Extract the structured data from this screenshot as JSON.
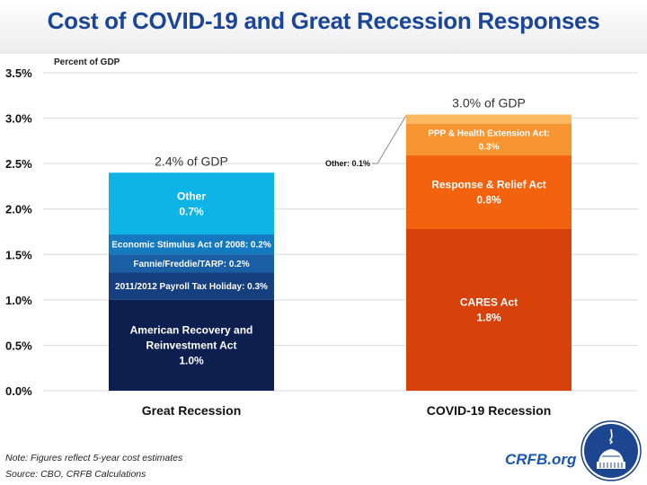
{
  "header": {
    "title": "Cost of COVID-19 and Great Recession Responses"
  },
  "colors": {
    "title": "#1a4599",
    "grid": "#d9d9d9",
    "leader_line": "#8c8c8c"
  },
  "chart_data": {
    "type": "bar",
    "stacked": true,
    "title": "Cost of COVID-19 and Great Recession Responses",
    "ylabel": "Percent of GDP",
    "xlabel": "",
    "ylim": [
      0,
      3.5
    ],
    "yticks": [
      0.0,
      0.5,
      1.0,
      1.5,
      2.0,
      2.5,
      3.0,
      3.5
    ],
    "ytick_labels": [
      "0.0%",
      "0.5%",
      "1.0%",
      "1.5%",
      "2.0%",
      "2.5%",
      "3.0%",
      "3.5%"
    ],
    "grid": true,
    "legend": "none",
    "categories": [
      "Great Recession",
      "COVID-19 Recession"
    ],
    "totals": [
      {
        "category": "Great Recession",
        "value": 2.4,
        "label": "2.4% of GDP"
      },
      {
        "category": "COVID-19 Recession",
        "value": 3.0,
        "label": "3.0% of GDP"
      }
    ],
    "stacks": [
      {
        "category": "Great Recession",
        "segments": [
          {
            "name": "American Recovery and Reinvestment Act",
            "value": 1.0,
            "label_lines": [
              "American Recovery and",
              "Reinvestment Act",
              "1.0%"
            ],
            "color": "#0d1f4e"
          },
          {
            "name": "2011/2012 Payroll Tax Holiday",
            "value": 0.3,
            "label_lines": [
              "2011/2012 Payroll Tax Holiday: 0.3%"
            ],
            "color": "#163f7f"
          },
          {
            "name": "Fannie/Freddie/TARP",
            "value": 0.2,
            "label_lines": [
              "Fannie/Freddie/TARP: 0.2%"
            ],
            "color": "#1a5ea3"
          },
          {
            "name": "Economic Stimulus Act of 2008",
            "value": 0.22,
            "label_lines": [
              "Economic Stimulus Act of 2008: 0.2%"
            ],
            "color": "#1479be"
          },
          {
            "name": "Other",
            "value": 0.68,
            "label_lines": [
              "Other",
              "0.7%"
            ],
            "color": "#0fb4e6"
          }
        ]
      },
      {
        "category": "COVID-19 Recession",
        "segments": [
          {
            "name": "CARES Act",
            "value": 1.78,
            "label_lines": [
              "CARES Act",
              "1.8%"
            ],
            "color": "#d7420a"
          },
          {
            "name": "Response & Relief Act",
            "value": 0.81,
            "label_lines": [
              "Response & Relief Act",
              "0.8%"
            ],
            "color": "#f2620f"
          },
          {
            "name": "PPP & Health Extension Act",
            "value": 0.35,
            "label_lines": [
              "PPP & Health Extension Act:",
              "0.3%"
            ],
            "color": "#f79530"
          },
          {
            "name": "Other",
            "value": 0.1,
            "label_lines": [],
            "color": "#fbb85e",
            "callout": "Other: 0.1%"
          }
        ]
      }
    ]
  },
  "footer": {
    "note": "Note: Figures reflect 5-year cost estimates",
    "source": "Source: CBO, CRFB Calculations",
    "brand": "CRFB.org"
  }
}
